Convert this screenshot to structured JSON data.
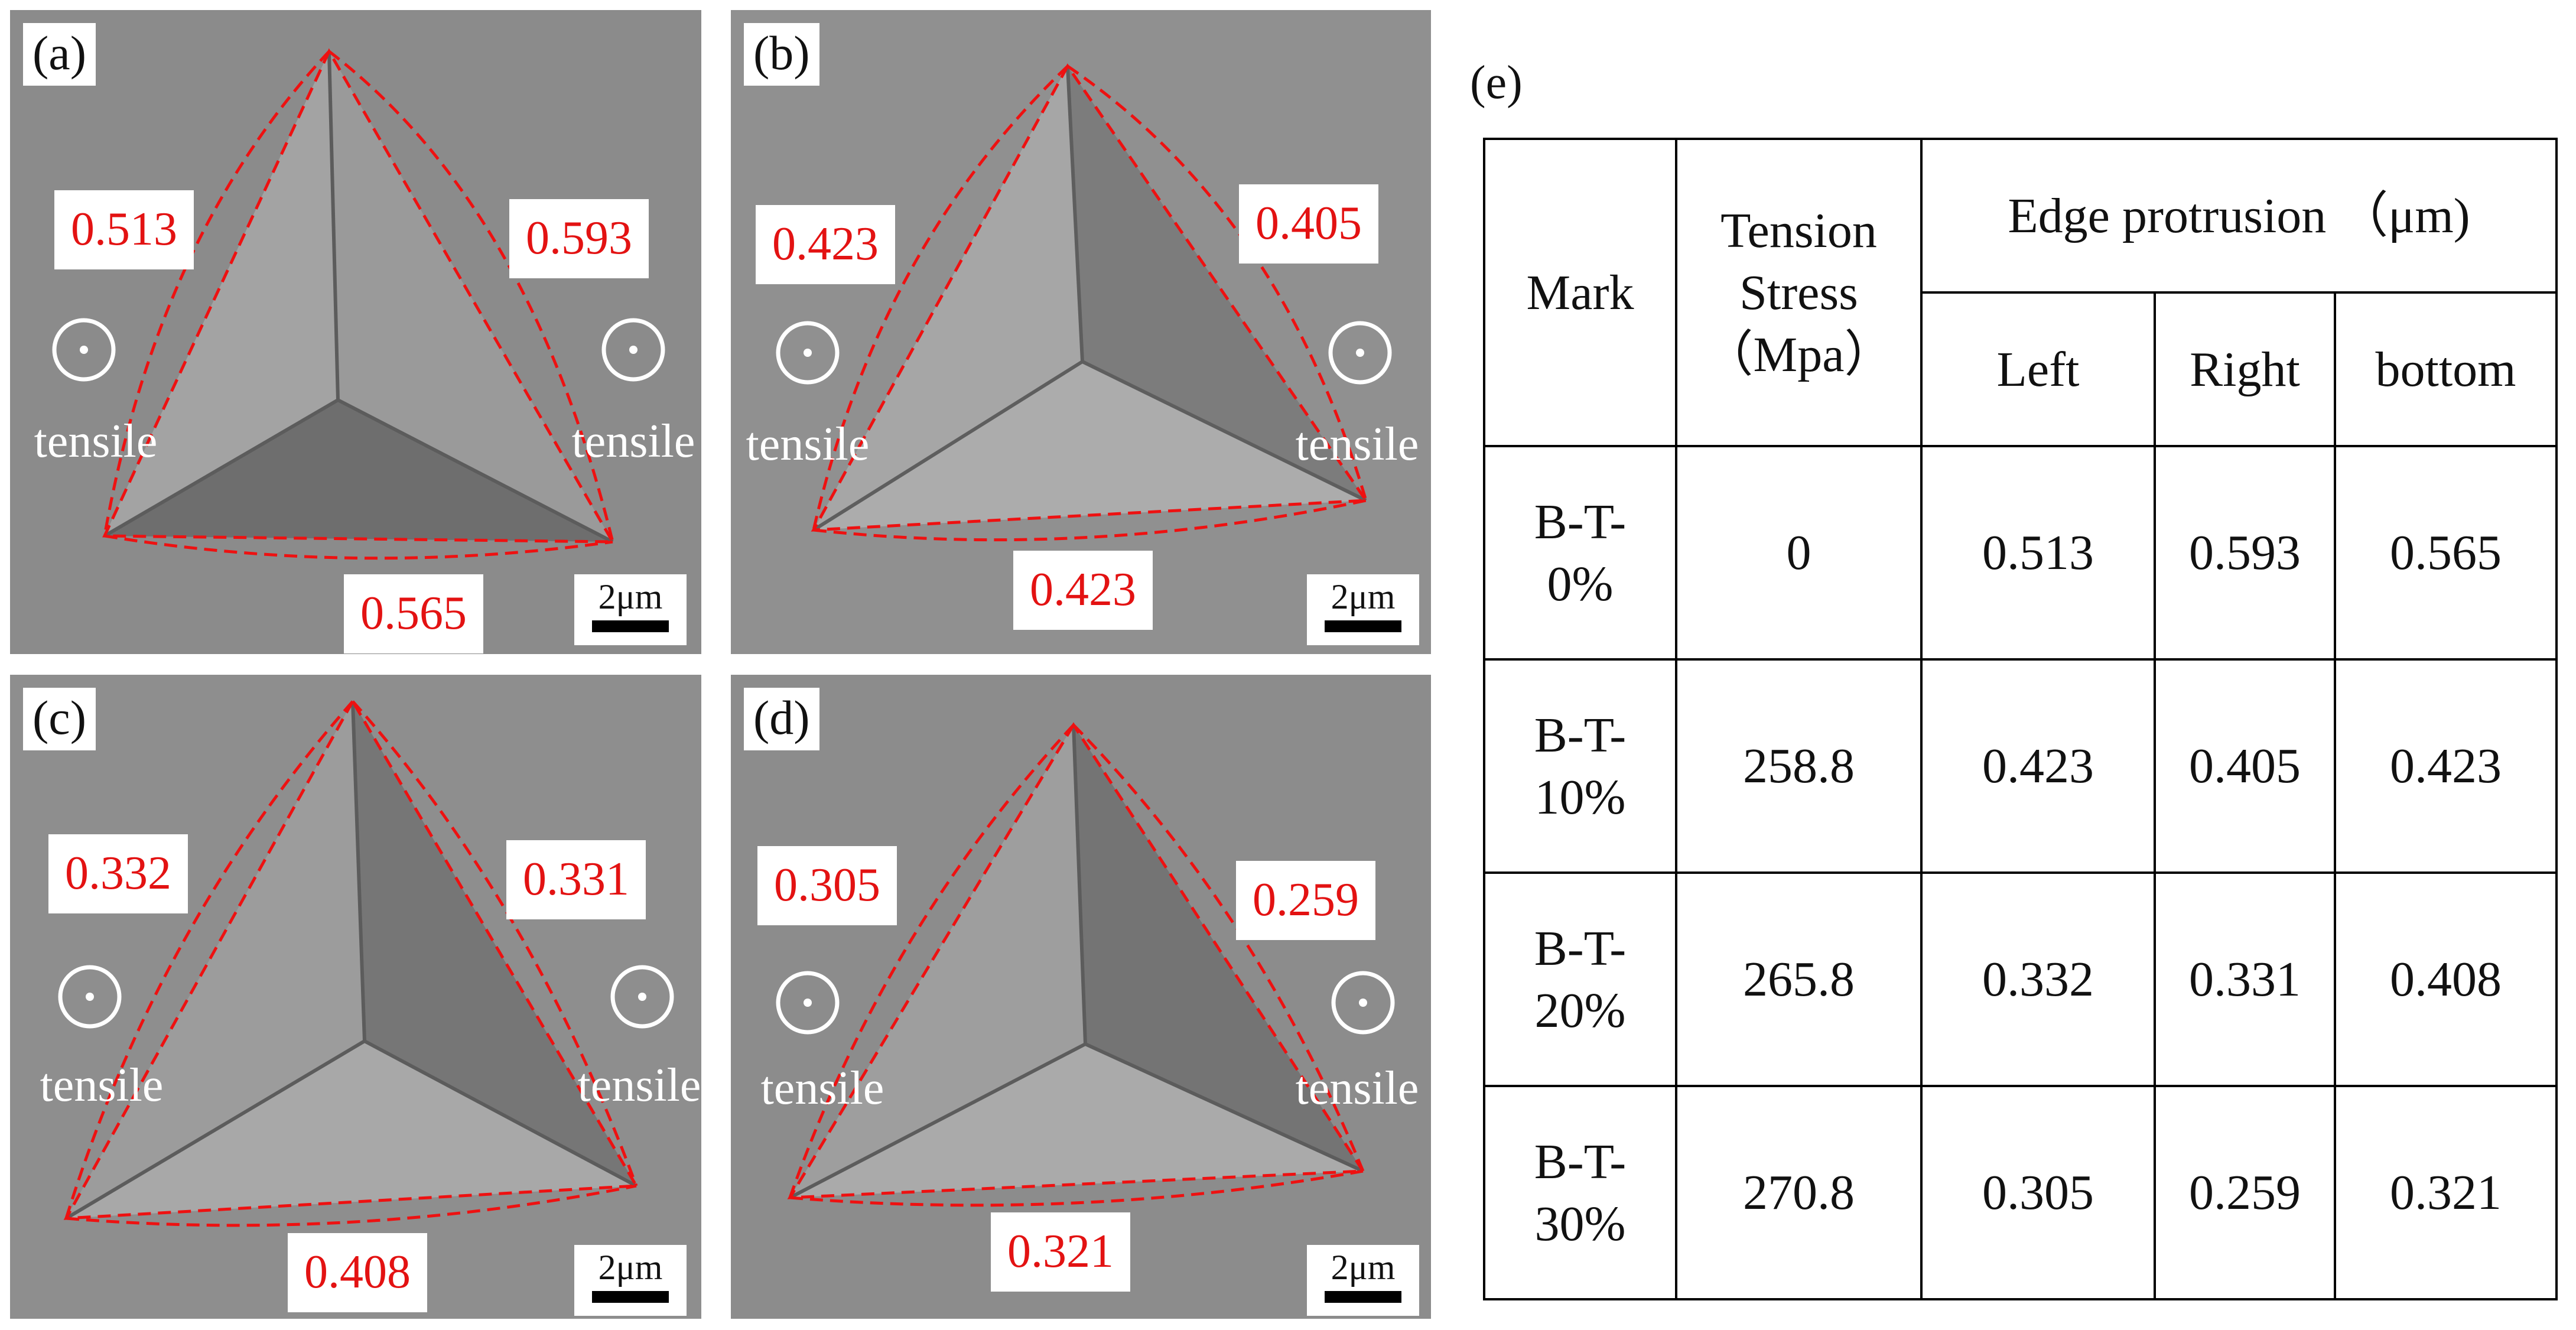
{
  "panels": [
    {
      "id": "a",
      "label": "(a)",
      "values": {
        "left": "0.513",
        "right": "0.593",
        "bottom": "0.565"
      },
      "tensile_left": "tensile",
      "tensile_right": "tensile",
      "scale": "2μm"
    },
    {
      "id": "b",
      "label": "(b)",
      "values": {
        "left": "0.423",
        "right": "0.405",
        "bottom": "0.423"
      },
      "tensile_left": "tensile",
      "tensile_right": "tensile",
      "scale": "2μm"
    },
    {
      "id": "c",
      "label": "(c)",
      "values": {
        "left": "0.332",
        "right": "0.331",
        "bottom": "0.408"
      },
      "tensile_left": "tensile",
      "tensile_right": "tensile",
      "scale": "2μm"
    },
    {
      "id": "d",
      "label": "(d)",
      "values": {
        "left": "0.305",
        "right": "0.259",
        "bottom": "0.321"
      },
      "tensile_left": "tensile",
      "tensile_right": "tensile",
      "scale": "2μm"
    }
  ],
  "table": {
    "panel_label": "(e)",
    "headers": {
      "mark": "Mark",
      "stress_line1": "Tension",
      "stress_line2": "Stress",
      "stress_line3": "（Mpa）",
      "edge": "Edge protrusion （μm)",
      "left": "Left",
      "right": "Right",
      "bottom": "bottom"
    },
    "rows": [
      {
        "mark_line1": "B-T-",
        "mark_line2": "0%",
        "stress": "0",
        "left": "0.513",
        "right": "0.593",
        "bottom": "0.565"
      },
      {
        "mark_line1": "B-T-",
        "mark_line2": "10%",
        "stress": "258.8",
        "left": "0.423",
        "right": "0.405",
        "bottom": "0.423"
      },
      {
        "mark_line1": "B-T-",
        "mark_line2": "20%",
        "stress": "265.8",
        "left": "0.332",
        "right": "0.331",
        "bottom": "0.408"
      },
      {
        "mark_line1": "B-T-",
        "mark_line2": "30%",
        "stress": "270.8",
        "left": "0.305",
        "right": "0.259",
        "bottom": "0.321"
      }
    ]
  }
}
